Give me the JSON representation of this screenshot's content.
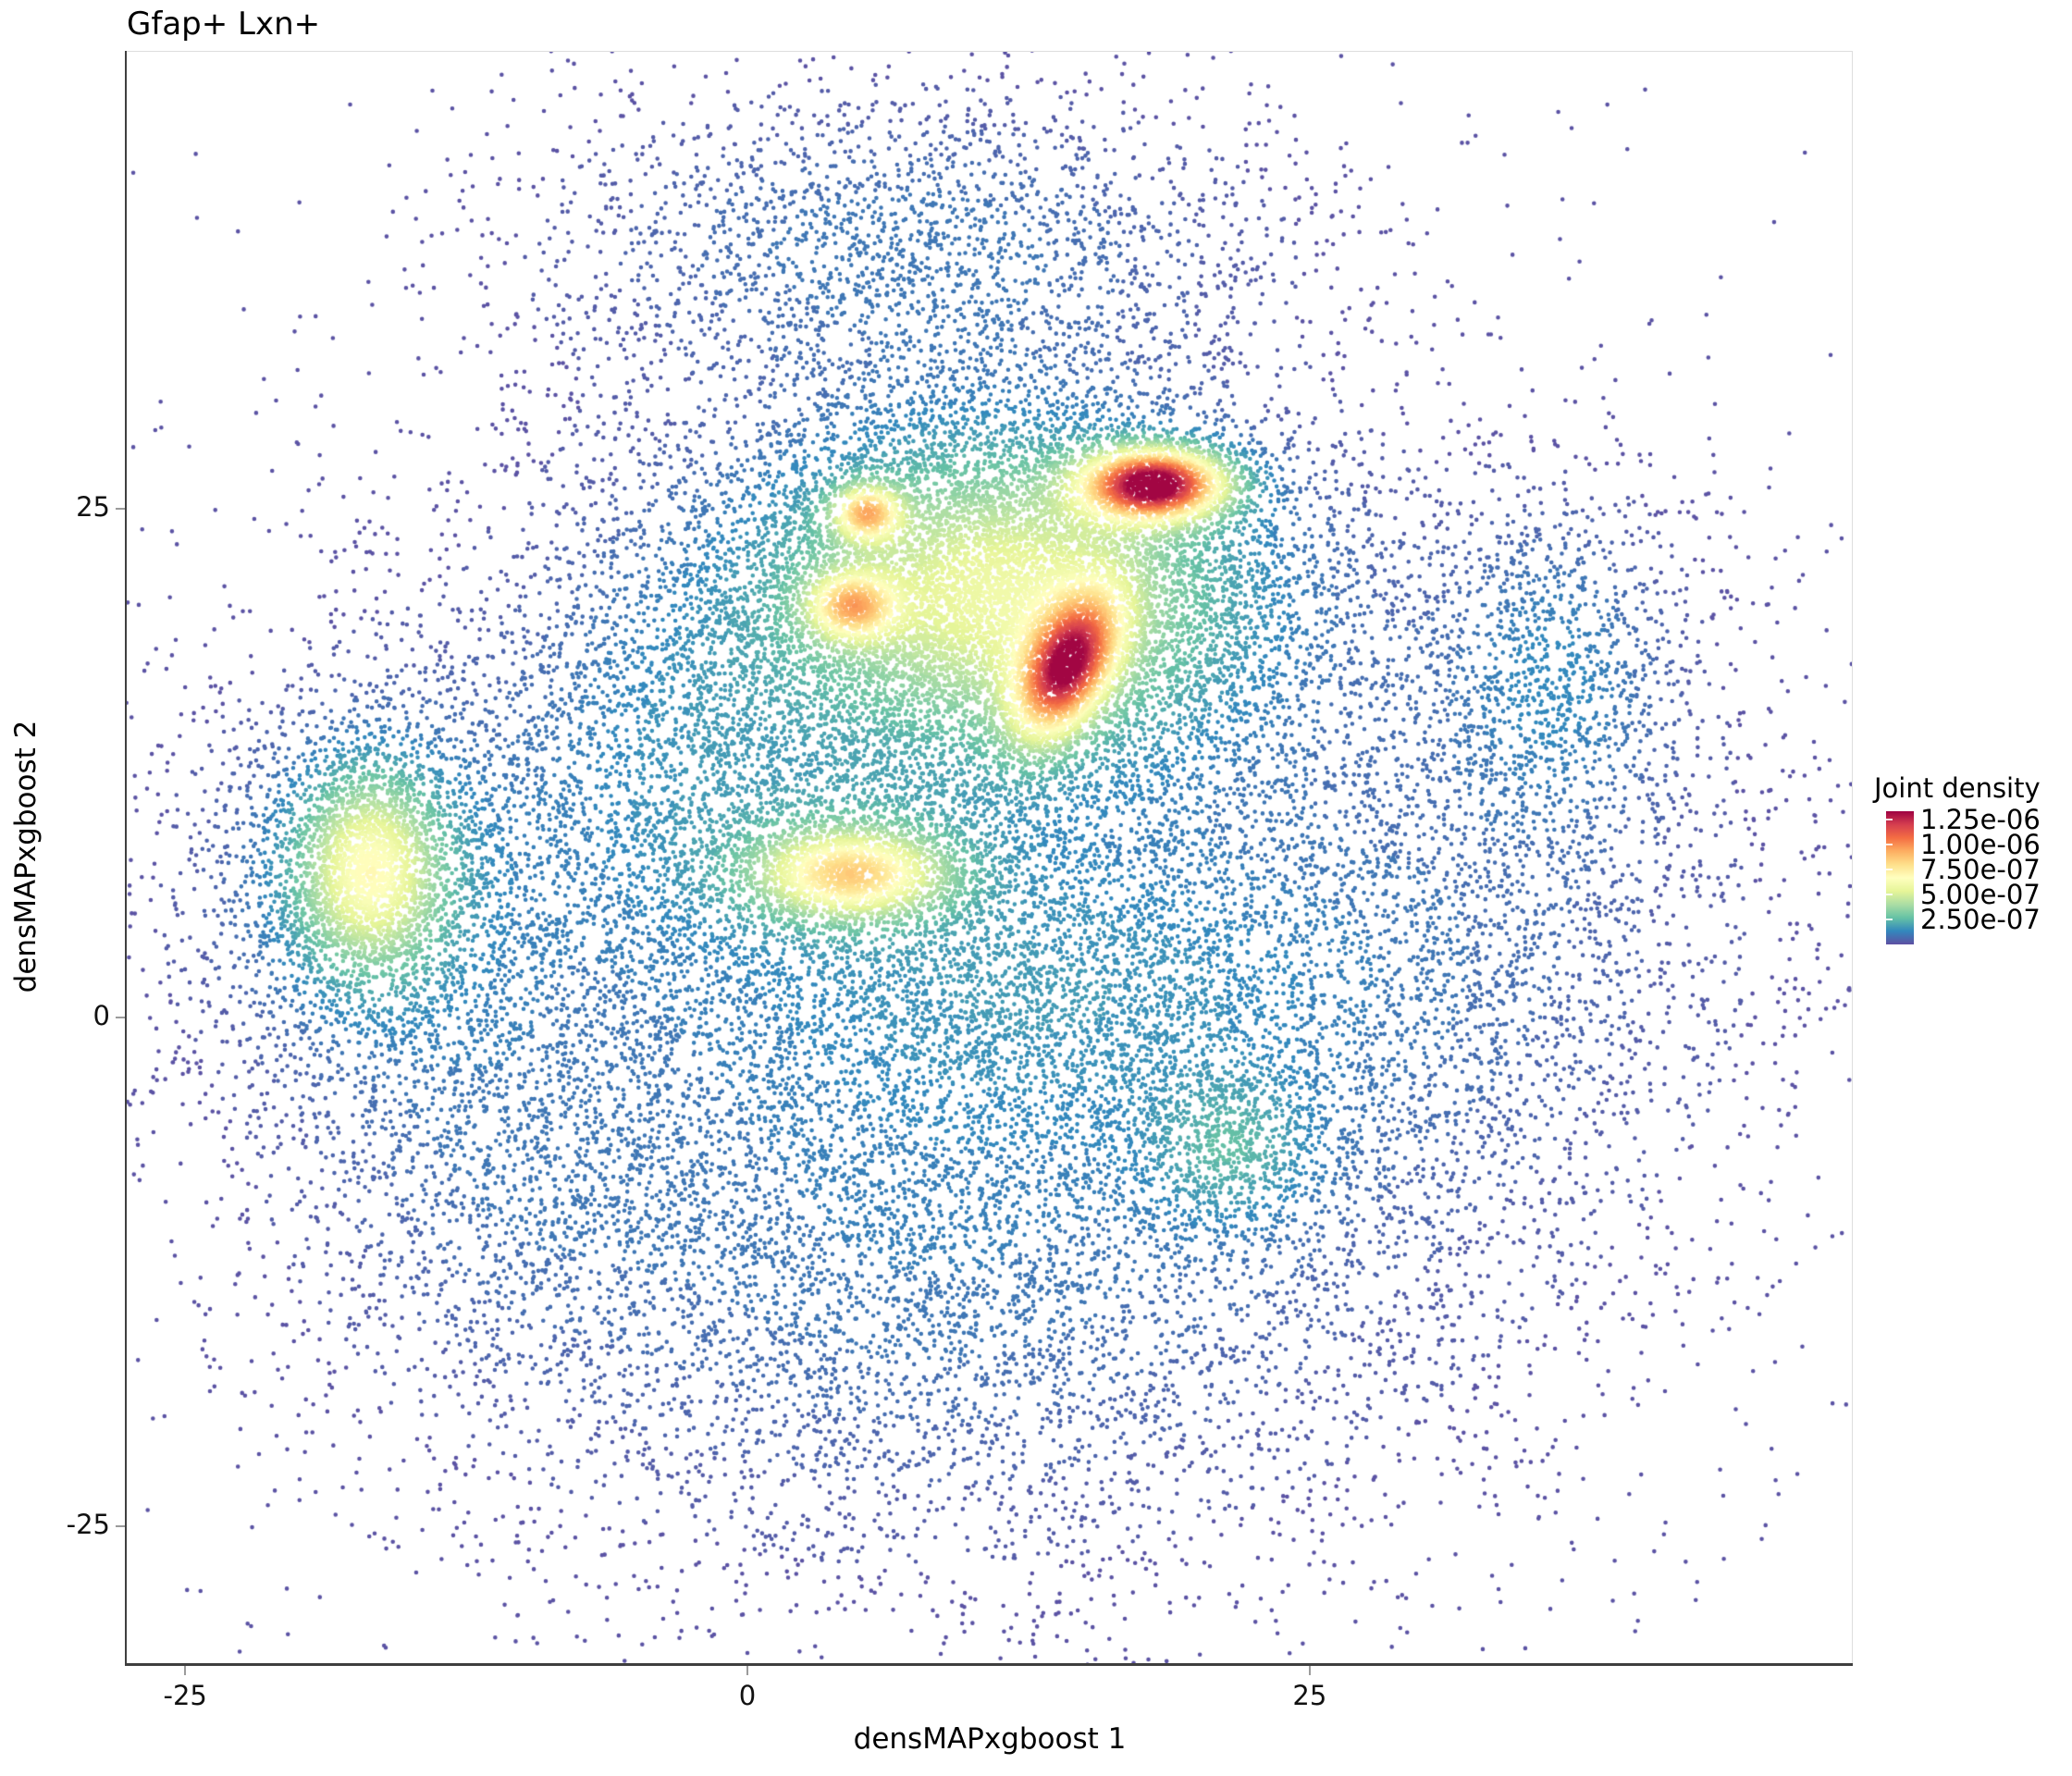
{
  "title": "Gfap+ Lxn+",
  "axes": {
    "x": {
      "label": "densMAPxgboost 1",
      "ticks": [
        {
          "value": -25,
          "label": "-25"
        },
        {
          "value": 0,
          "label": "0"
        },
        {
          "value": 25,
          "label": "25"
        }
      ]
    },
    "y": {
      "label": "densMAPxgboost 2",
      "ticks": [
        {
          "value": 25,
          "label": "25"
        },
        {
          "value": 0,
          "label": "0"
        },
        {
          "value": -25,
          "label": "-25"
        }
      ]
    }
  },
  "legend": {
    "title": "Joint density",
    "ticks": [
      {
        "value": 1.25e-06,
        "label": "1.25e-06"
      },
      {
        "value": 1e-06,
        "label": "1.00e-06"
      },
      {
        "value": 7.5e-07,
        "label": "7.50e-07"
      },
      {
        "value": 5e-07,
        "label": "5.00e-07"
      },
      {
        "value": 2.5e-07,
        "label": "2.50e-07"
      }
    ]
  },
  "chart_data": {
    "type": "scatter",
    "title": "Gfap+ Lxn+",
    "xlabel": "densMAPxgboost 1",
    "ylabel": "densMAPxgboost 2",
    "xlim": [
      -27.6,
      49.15
    ],
    "ylim": [
      -31.75,
      47.5
    ],
    "x_ticks": [
      -25,
      0,
      25
    ],
    "y_ticks": [
      -25,
      0,
      25
    ],
    "grid": false,
    "point_radius_px": 2.3,
    "seed": 1337,
    "color_scale": {
      "label": "Joint density",
      "name": "Spectral_r",
      "domain": [
        0,
        1.333e-06
      ],
      "peak_density": 1.47e-06,
      "legend_tick_values": [
        2.5e-07,
        5e-07,
        7.5e-07,
        1e-06,
        1.25e-06
      ],
      "colors_low_to_high": [
        "#5e4fa2",
        "#3288bd",
        "#66c2a5",
        "#abdda4",
        "#e6f598",
        "#ffffbf",
        "#fee08b",
        "#fdae61",
        "#f46d43",
        "#d53e4f",
        "#9e0142"
      ]
    },
    "density_clusters": [
      {
        "name": "bg-bottom-sea",
        "cx": 8,
        "cy": -12,
        "sx": 13,
        "sy": 8.5,
        "rho": 0,
        "n": 5200
      },
      {
        "name": "bg-mid-halo",
        "cx": 9,
        "cy": 6,
        "sx": 16,
        "sy": 13,
        "rho": 0,
        "n": 4200
      },
      {
        "name": "bg-top-cloud",
        "cx": 7,
        "cy": 38,
        "sx": 9.5,
        "sy": 4.5,
        "rho": 0,
        "n": 2300
      },
      {
        "name": "bg-right-cloud",
        "cx": 31,
        "cy": 4,
        "sx": 9,
        "sy": 10,
        "rho": 0,
        "n": 2400
      },
      {
        "name": "bg-left-arm",
        "cx": -11,
        "cy": -6,
        "sx": 5.5,
        "sy": 7,
        "rho": 0,
        "n": 1100
      },
      {
        "name": "bg-outer-fringe",
        "cx": 8,
        "cy": 2,
        "sx": 22,
        "sy": 17,
        "rho": 0,
        "n": 1400
      },
      {
        "name": "mid-ring-hot",
        "cx": 10,
        "cy": 20,
        "sx": 9.5,
        "sy": 6.5,
        "rho": 0,
        "n": 4800
      },
      {
        "name": "mid-band-below",
        "cx": 13,
        "cy": 1.5,
        "sx": 10,
        "sy": 5,
        "rho": 0,
        "n": 2800
      },
      {
        "name": "teal-right-patch",
        "cx": 36,
        "cy": 17,
        "sx": 3.2,
        "sy": 5,
        "rho": 0,
        "n": 1000
      },
      {
        "name": "green-bottom-patch",
        "cx": 21.5,
        "cy": -6.5,
        "sx": 2.4,
        "sy": 2.4,
        "rho": 0,
        "n": 520
      },
      {
        "name": "mid-left-bridge",
        "cx": -3.5,
        "cy": 12,
        "sx": 4.5,
        "sy": 6,
        "rho": 0,
        "n": 1400
      },
      {
        "name": "left-cluster-core",
        "cx": -16.8,
        "cy": 7.2,
        "sx": 2.1,
        "sy": 3.1,
        "rho": 0,
        "n": 1900
      },
      {
        "name": "left-cluster-halo",
        "cx": -16.5,
        "cy": 6.5,
        "sx": 4.6,
        "sy": 5.6,
        "rho": 0,
        "n": 2100
      },
      {
        "name": "hot-plateau",
        "cx": 11.5,
        "cy": 21,
        "sx": 6.2,
        "sy": 4.6,
        "rho": 0,
        "n": 6800
      },
      {
        "name": "hot-peak-a",
        "cx": 18.1,
        "cy": 26.2,
        "sx": 2.1,
        "sy": 1.15,
        "rho": 0,
        "n": 1700
      },
      {
        "name": "hot-peak-b",
        "cx": 14.2,
        "cy": 17.2,
        "sx": 1.5,
        "sy": 2.3,
        "rho": 0.45,
        "n": 1700
      },
      {
        "name": "hot-spot-c",
        "cx": 5.3,
        "cy": 24.8,
        "sx": 1.0,
        "sy": 0.9,
        "rho": 0,
        "n": 330
      },
      {
        "name": "hot-spot-d",
        "cx": 4.6,
        "cy": 20.2,
        "sx": 1.3,
        "sy": 1.1,
        "rho": 0,
        "n": 480
      },
      {
        "name": "mid-blob-core",
        "cx": 4.6,
        "cy": 7.0,
        "sx": 2.7,
        "sy": 1.4,
        "rho": 0,
        "n": 1250
      },
      {
        "name": "mid-blob-halo",
        "cx": 4.4,
        "cy": 7.6,
        "sx": 4.2,
        "sy": 2.6,
        "rho": 0,
        "n": 900
      }
    ]
  }
}
